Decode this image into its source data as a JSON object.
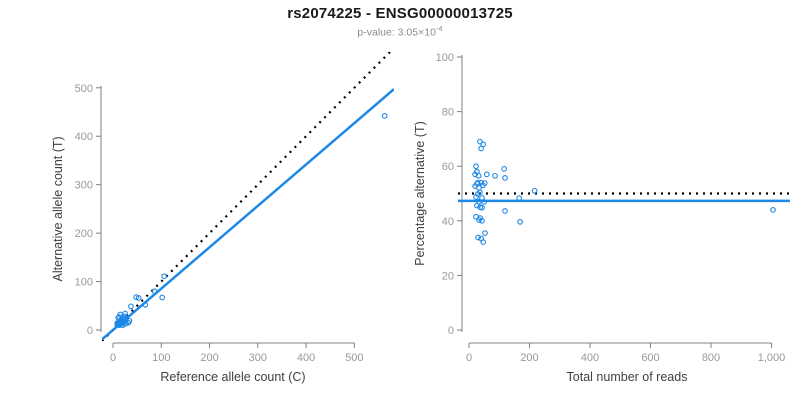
{
  "header": {
    "title": "rs2074225 - ENSG00000013725",
    "pvalue_text": "p-value: 3.05×10",
    "pvalue_exponent": "-4"
  },
  "colors": {
    "background": "#FFFFFF",
    "accent_blue": "#1E88E5",
    "dotted_black": "#000000",
    "axis_gray": "#808080",
    "tick_label_gray": "#999999",
    "axis_title": "#404040",
    "title_black": "#1A1A1A",
    "subtitle_gray": "#8C8C8C"
  },
  "chart_data": [
    {
      "type": "scatter",
      "panel": "left",
      "xlabel": "Reference allele count (C)",
      "ylabel": "Alternative allele count (T)",
      "xlim": [
        0,
        565
      ],
      "ylim": [
        0,
        565
      ],
      "grid": false,
      "legend": "none",
      "xticks": [
        0,
        100,
        200,
        300,
        400,
        500
      ],
      "xtick_labels": [
        "0",
        "100",
        "200",
        "300",
        "400",
        "500"
      ],
      "yticks": [
        0,
        100,
        200,
        300,
        400,
        500
      ],
      "ytick_labels": [
        "0",
        "100",
        "200",
        "300",
        "400",
        "500"
      ],
      "x": [
        11,
        15,
        13,
        9,
        11,
        9,
        14,
        25,
        37,
        53,
        13,
        18,
        24,
        12,
        22,
        9,
        16,
        106,
        18,
        15,
        12,
        22,
        86,
        17,
        27,
        14,
        20,
        24,
        67,
        13,
        22,
        20,
        26,
        102,
        34,
        20,
        27,
        32,
        563,
        48
      ],
      "y": [
        25,
        32,
        27,
        14,
        15,
        11,
        18,
        34,
        49,
        66,
        16,
        22,
        28,
        14,
        24,
        11,
        17,
        111,
        18,
        14,
        11,
        21,
        80,
        16,
        23,
        12,
        17,
        19,
        52,
        10,
        15,
        13,
        17,
        67,
        19,
        10,
        13,
        15,
        442,
        68
      ],
      "lines": [
        {
          "name": "identity",
          "style": "dotted",
          "color": "#000000",
          "slope": 1,
          "intercept": 0
        },
        {
          "name": "regression",
          "style": "solid",
          "color": "#1E88E5",
          "slope": 0.854,
          "intercept": 0
        }
      ]
    },
    {
      "type": "scatter",
      "panel": "right",
      "xlabel": "Total number of reads",
      "ylabel": "Percentage alternative (T)",
      "xlim": [
        0,
        1040
      ],
      "ylim": [
        0,
        100
      ],
      "grid": false,
      "legend": "none",
      "xticks": [
        0,
        200,
        400,
        600,
        800,
        1000
      ],
      "xtick_labels": [
        "0",
        "200",
        "400",
        "600",
        "800",
        "1,000"
      ],
      "yticks": [
        0,
        20,
        40,
        60,
        80,
        100
      ],
      "ytick_labels": [
        "0",
        "20",
        "40",
        "60",
        "80",
        "100"
      ],
      "x": [
        36,
        47,
        40,
        23,
        26,
        20,
        32,
        59,
        86,
        119,
        29,
        40,
        52,
        26,
        46,
        20,
        33,
        217,
        36,
        29,
        23,
        43,
        166,
        33,
        50,
        26,
        37,
        43,
        119,
        23,
        37,
        33,
        43,
        169,
        53,
        30,
        40,
        47,
        1005,
        116
      ],
      "y": [
        69,
        68,
        66.5,
        60,
        58,
        57,
        56.5,
        57,
        56.5,
        55.7,
        54,
        54,
        53.8,
        53.5,
        53,
        52.7,
        52,
        51,
        50.5,
        49.8,
        48.7,
        48.4,
        48.3,
        47,
        46.9,
        45.6,
        45,
        44.8,
        43.6,
        41.5,
        41,
        40.3,
        40,
        39.6,
        35.5,
        33.9,
        33.5,
        32.2,
        44,
        59
      ],
      "lines": [
        {
          "name": "expected-50pct",
          "style": "dotted",
          "color": "#000000",
          "slope": 0,
          "intercept": 50
        },
        {
          "name": "fitted-mean",
          "style": "solid",
          "color": "#1E88E5",
          "slope": 0,
          "intercept": 47.3
        }
      ]
    }
  ]
}
